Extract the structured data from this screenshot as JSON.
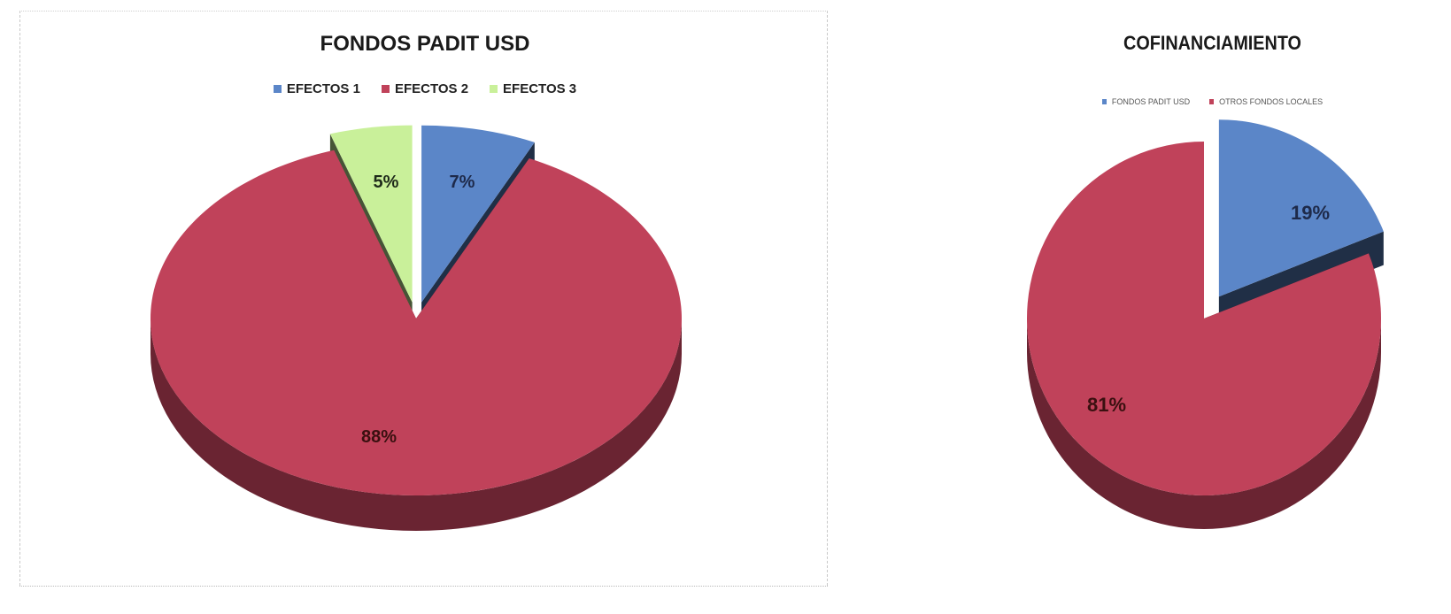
{
  "chart_data": [
    {
      "type": "pie",
      "title": "FONDOS PADIT USD",
      "categories": [
        "EFECTOS 1",
        "EFECTOS 2",
        "EFECTOS 3"
      ],
      "values": [
        7,
        88,
        5
      ],
      "labels": [
        "7%",
        "88%",
        "5%"
      ],
      "colors": [
        "#5b86c8",
        "#c0425a",
        "#c9f09a"
      ],
      "legend_placement": "top"
    },
    {
      "type": "pie",
      "title": "COFINANCIAMIENTO",
      "categories": [
        "FONDOS PADIT USD",
        "OTROS FONDOS LOCALES"
      ],
      "values": [
        19,
        81
      ],
      "labels": [
        "19%",
        "81%"
      ],
      "colors": [
        "#5b86c8",
        "#c0425a"
      ],
      "legend_placement": "top"
    }
  ]
}
